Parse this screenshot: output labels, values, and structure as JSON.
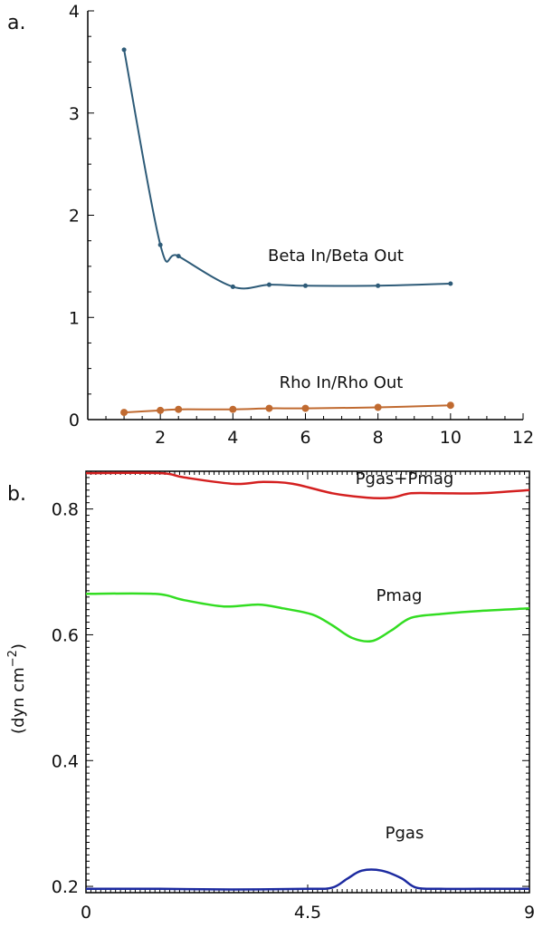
{
  "chart_data": [
    {
      "panel_label": "a.",
      "type": "line",
      "x_ticks": [
        2,
        4,
        6,
        8,
        10,
        12
      ],
      "y_ticks": [
        0,
        1,
        2,
        3,
        4
      ],
      "xlim": [
        0,
        12
      ],
      "ylim": [
        0,
        4
      ],
      "series": [
        {
          "name": "Beta In/Beta Out",
          "color": "#2e5b78",
          "x": [
            1,
            2,
            2.5,
            4,
            5,
            6,
            8,
            10
          ],
          "y": [
            3.62,
            1.71,
            1.6,
            1.3,
            1.32,
            1.31,
            1.31,
            1.33
          ]
        },
        {
          "name": "Rho In/Rho Out",
          "color": "#c06a30",
          "x": [
            1,
            2,
            2.5,
            4,
            5,
            6,
            8,
            10
          ],
          "y": [
            0.07,
            0.09,
            0.1,
            0.1,
            0.11,
            0.11,
            0.12,
            0.14
          ]
        }
      ]
    },
    {
      "panel_label": "b.",
      "type": "line",
      "ylabel": "(dyn cm^-2)",
      "x_ticks": [
        0,
        4.5,
        9
      ],
      "y_ticks": [
        0.2,
        0.4,
        0.6,
        0.8
      ],
      "xlim": [
        0,
        9
      ],
      "ylim": [
        0.19,
        0.86
      ],
      "series": [
        {
          "name": "Pgas+Pmag",
          "color": "#d42020",
          "x": [
            0,
            1.5,
            2,
            3,
            3.6,
            4.2,
            5,
            5.7,
            6.2,
            6.6,
            7.2,
            8,
            9
          ],
          "y": [
            0.857,
            0.857,
            0.85,
            0.84,
            0.843,
            0.84,
            0.825,
            0.818,
            0.818,
            0.825,
            0.825,
            0.825,
            0.83
          ]
        },
        {
          "name": "Pmag",
          "color": "#33dd22",
          "x": [
            0,
            1.4,
            2,
            2.8,
            3.5,
            4,
            4.6,
            5,
            5.4,
            5.8,
            6.2,
            6.6,
            7.2,
            8,
            9
          ],
          "y": [
            0.665,
            0.665,
            0.655,
            0.645,
            0.648,
            0.642,
            0.632,
            0.615,
            0.595,
            0.59,
            0.607,
            0.627,
            0.633,
            0.638,
            0.642
          ]
        },
        {
          "name": "Pgas",
          "color": "#1c2aa0",
          "x": [
            0,
            1.5,
            3,
            4.5,
            5,
            5.3,
            5.6,
            6,
            6.4,
            6.7,
            7.2,
            8,
            9
          ],
          "y": [
            0.196,
            0.196,
            0.195,
            0.196,
            0.198,
            0.212,
            0.225,
            0.225,
            0.213,
            0.198,
            0.196,
            0.196,
            0.196
          ]
        }
      ]
    }
  ]
}
